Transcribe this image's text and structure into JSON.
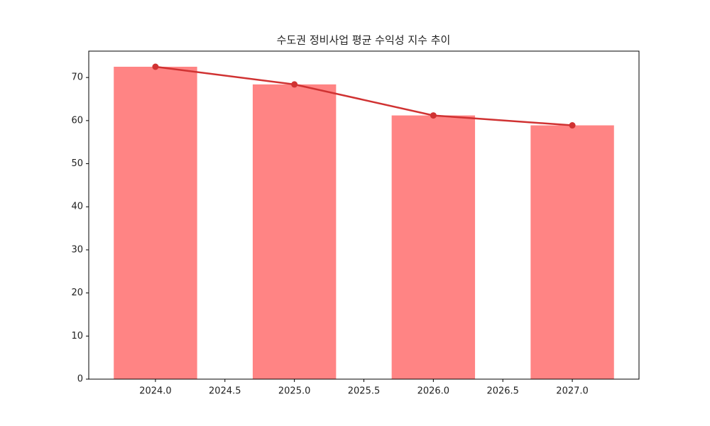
{
  "chart_data": {
    "type": "bar",
    "title": "수도권 정비사업 평균 수익성 지수 추이",
    "x": [
      2024,
      2025,
      2026,
      2027
    ],
    "series": [
      {
        "type": "bar",
        "color": "#ff8484",
        "values": [
          72.5,
          68.4,
          61.2,
          58.9
        ]
      },
      {
        "type": "line",
        "color": "#d03232",
        "values": [
          72.5,
          68.4,
          61.2,
          58.9
        ]
      }
    ],
    "xlim": [
      2023.52,
      2027.48
    ],
    "xticks": [
      {
        "value": 2024,
        "label": "2024.0"
      },
      {
        "value": 2024.5,
        "label": "2024.5"
      },
      {
        "value": 2025,
        "label": "2025.0"
      },
      {
        "value": 2025.5,
        "label": "2025.5"
      },
      {
        "value": 2026,
        "label": "2026.0"
      },
      {
        "value": 2026.5,
        "label": "2026.5"
      },
      {
        "value": 2027,
        "label": "2027.0"
      }
    ],
    "ylim": [
      0,
      76.125
    ],
    "yticks": [
      0,
      10,
      20,
      30,
      40,
      50,
      60,
      70
    ],
    "grid": false
  }
}
